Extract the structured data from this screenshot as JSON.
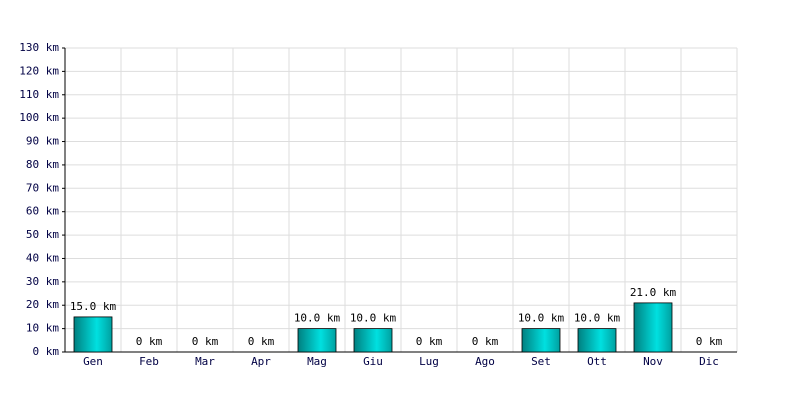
{
  "chart_data": {
    "type": "bar",
    "categories": [
      "Gen",
      "Feb",
      "Mar",
      "Apr",
      "Mag",
      "Giu",
      "Lug",
      "Ago",
      "Set",
      "Ott",
      "Nov",
      "Dic"
    ],
    "values": [
      15,
      0,
      0,
      0,
      10,
      10,
      0,
      0,
      10,
      10,
      21,
      0
    ],
    "value_labels": [
      "15.0 km",
      "0 km",
      "0 km",
      "0 km",
      "10.0 km",
      "10.0 km",
      "0 km",
      "0 km",
      "10.0 km",
      "10.0 km",
      "21.0 km",
      "0 km"
    ],
    "color": "#00e0e0",
    "ylim": [
      0,
      130
    ],
    "yticks": [
      {
        "value": 0,
        "label": "0 km"
      },
      {
        "value": 10,
        "label": "10 km"
      },
      {
        "value": 20,
        "label": "20 km"
      },
      {
        "value": 30,
        "label": "30 km"
      },
      {
        "value": 40,
        "label": "40 km"
      },
      {
        "value": 50,
        "label": "50 km"
      },
      {
        "value": 60,
        "label": "60 km"
      },
      {
        "value": 70,
        "label": "70 km"
      },
      {
        "value": 80,
        "label": "80 km"
      },
      {
        "value": 90,
        "label": "90 km"
      },
      {
        "value": 100,
        "label": "100 km"
      },
      {
        "value": 110,
        "label": "110 km"
      },
      {
        "value": 120,
        "label": "120 km"
      },
      {
        "value": 130,
        "label": "130 km"
      }
    ],
    "grid": true
  }
}
